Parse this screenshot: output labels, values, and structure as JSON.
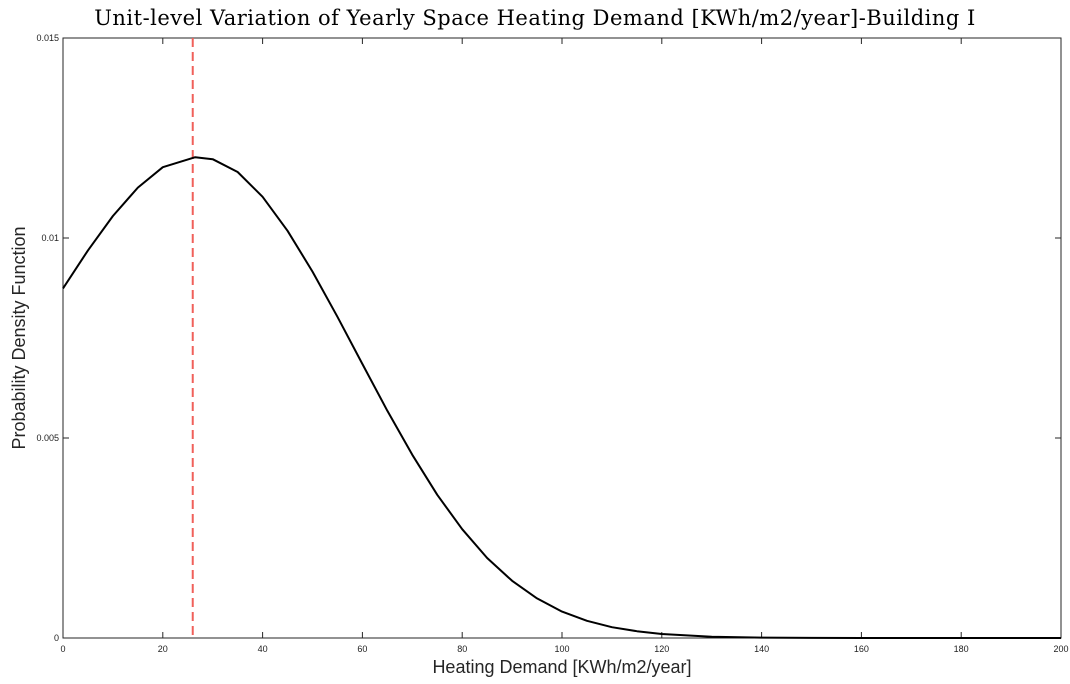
{
  "chart_data": {
    "type": "line",
    "title": "Unit-level Variation of Yearly Space Heating Demand [KWh/m2/year]-Building I",
    "xlabel": "Heating Demand [KWh/m2/year]",
    "ylabel": "Probability Density Function",
    "xlim": [
      0,
      200
    ],
    "ylim": [
      0,
      0.015
    ],
    "x_ticks": [
      0,
      20,
      40,
      60,
      80,
      100,
      120,
      140,
      160,
      180,
      200
    ],
    "x_tick_labels": [
      "0",
      "20",
      "40",
      "60",
      "80",
      "100",
      "120",
      "140",
      "160",
      "180",
      "200"
    ],
    "y_ticks": [
      0,
      0.005,
      0.01,
      0.015
    ],
    "y_tick_labels": [
      "0",
      "0.005",
      "0.01",
      "0.015"
    ],
    "grid": false,
    "series": [
      {
        "color": "#000000",
        "style": "solid",
        "x": [
          0,
          5,
          10,
          15,
          20,
          26.5,
          30,
          35,
          40,
          45,
          50,
          55,
          60,
          65,
          70,
          75,
          80,
          85,
          90,
          95,
          100,
          105,
          110,
          115,
          120,
          130,
          140,
          150,
          160,
          180,
          200
        ],
        "y": [
          0.00874,
          0.00969,
          0.01055,
          0.01126,
          0.01177,
          0.01202,
          0.01197,
          0.01165,
          0.01103,
          0.01018,
          0.00916,
          0.00803,
          0.00685,
          0.00568,
          0.00458,
          0.00358,
          0.00272,
          0.002,
          0.00143,
          0.00099,
          0.00066,
          0.00043,
          0.00027,
          0.00017,
          0.0001,
          3e-05,
          1e-05,
          2e-06,
          5e-07,
          0,
          0
        ]
      }
    ],
    "reference_lines": [
      {
        "orientation": "vertical",
        "x": 26,
        "color": "#f0605a",
        "style": "dashed"
      }
    ]
  }
}
